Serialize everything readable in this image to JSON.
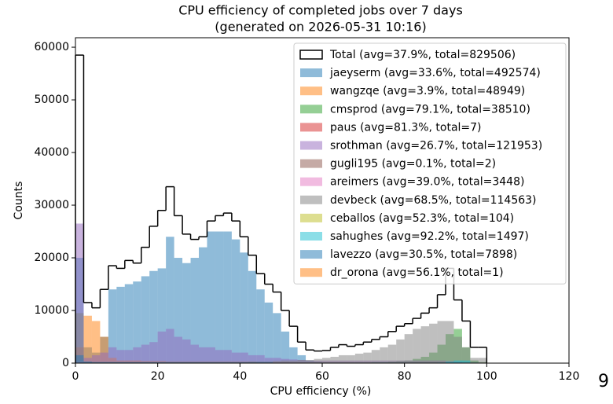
{
  "chart_data": {
    "type": "histogram",
    "title": "CPU efficiency of completed jobs over 7 days",
    "subtitle": "(generated on 2026-05-31 10:16)",
    "x_label": "CPU efficiency (%)",
    "y_label": "Counts",
    "corner_text": "9",
    "xlim": [
      0,
      120
    ],
    "xticks": [
      0,
      20,
      40,
      60,
      80,
      100,
      120
    ],
    "ylim": [
      0,
      61800
    ],
    "yticks": [
      0,
      10000,
      20000,
      30000,
      40000,
      50000,
      60000
    ],
    "legend": "upper right",
    "alpha": 0.5,
    "bins": [
      0,
      2,
      4,
      6,
      8,
      10,
      12,
      14,
      16,
      18,
      20,
      22,
      24,
      26,
      28,
      30,
      32,
      34,
      36,
      38,
      40,
      42,
      44,
      46,
      48,
      50,
      52,
      54,
      56,
      58,
      60,
      62,
      64,
      66,
      68,
      70,
      72,
      74,
      76,
      78,
      80,
      82,
      84,
      86,
      88,
      90,
      92,
      94,
      96,
      98,
      100
    ],
    "total": {
      "name": "Total (avg=37.9%, total=829506)",
      "color": "#000000",
      "values": [
        58500,
        11500,
        10500,
        14000,
        18500,
        18000,
        19500,
        19000,
        22000,
        26000,
        29000,
        33500,
        28000,
        24500,
        23500,
        24000,
        27000,
        28000,
        28500,
        27000,
        24000,
        20500,
        17000,
        15000,
        13500,
        10000,
        7000,
        4000,
        2500,
        2300,
        2400,
        3000,
        3500,
        3200,
        3500,
        4000,
        4500,
        5000,
        6000,
        7000,
        7500,
        8500,
        9500,
        10500,
        13000,
        18000,
        12000,
        8000,
        3000,
        3000
      ]
    },
    "series": [
      {
        "name": "jaeyserm (avg=33.6%, total=492574)",
        "color": "#1f77b4",
        "values": [
          20000,
          3000,
          2000,
          5000,
          14000,
          14500,
          15000,
          15500,
          16500,
          17500,
          18000,
          24000,
          20000,
          19000,
          20000,
          22000,
          25000,
          25000,
          25000,
          23500,
          21000,
          17500,
          14000,
          11500,
          9500,
          6000,
          3000,
          1500,
          500,
          300,
          200,
          200,
          200,
          200,
          200,
          200,
          200,
          200,
          200,
          200,
          200,
          200,
          200,
          200,
          200,
          200,
          200,
          200,
          200,
          0
        ]
      },
      {
        "name": "wangzqe (avg=3.9%, total=48949)",
        "color": "#ff7f0e",
        "values": [
          3000,
          9000,
          8000,
          5000,
          1000,
          500,
          500,
          500,
          400,
          400,
          400,
          300,
          300,
          300,
          300,
          300,
          300,
          300,
          300,
          300,
          300,
          300,
          200,
          200,
          200,
          200,
          200,
          200,
          200,
          200,
          200,
          200,
          200,
          200,
          200,
          200,
          200,
          200,
          200,
          200,
          200,
          200,
          200,
          200,
          200,
          200,
          200,
          200,
          100,
          100
        ]
      },
      {
        "name": "cmsprod (avg=79.1%, total=38510)",
        "color": "#2ca02c",
        "values": [
          0,
          0,
          0,
          0,
          0,
          0,
          0,
          0,
          0,
          0,
          0,
          0,
          0,
          0,
          0,
          0,
          0,
          0,
          0,
          0,
          0,
          0,
          0,
          0,
          0,
          0,
          0,
          0,
          0,
          0,
          0,
          0,
          0,
          0,
          100,
          100,
          200,
          200,
          300,
          400,
          500,
          800,
          1200,
          2000,
          3500,
          5500,
          6500,
          3000,
          500,
          200
        ]
      },
      {
        "name": "paus (avg=81.3%, total=7)",
        "color": "#d62728",
        "values": [
          0,
          0,
          0,
          0,
          0,
          0,
          0,
          0,
          0,
          0,
          0,
          0,
          0,
          0,
          0,
          0,
          0,
          0,
          0,
          0,
          0,
          0,
          0,
          0,
          0,
          0,
          0,
          0,
          0,
          0,
          0,
          0,
          0,
          0,
          0,
          0,
          0,
          0,
          0,
          0,
          7,
          0,
          0,
          0,
          0,
          0,
          0,
          0,
          0,
          0
        ]
      },
      {
        "name": "srothman (avg=26.7%, total=121953)",
        "color": "#9467bd",
        "values": [
          26500,
          1000,
          1500,
          2000,
          3000,
          2500,
          2500,
          3000,
          3500,
          4000,
          6000,
          6500,
          5000,
          4500,
          3500,
          3000,
          3000,
          2500,
          2500,
          2000,
          2000,
          1500,
          1500,
          1000,
          1000,
          800,
          700,
          600,
          500,
          500,
          500,
          500,
          500,
          500,
          500,
          500,
          500,
          500,
          500,
          500,
          500,
          500,
          500,
          500,
          500,
          400,
          300,
          200,
          100,
          100
        ]
      },
      {
        "name": "gugli195 (avg=0.1%, total=2)",
        "color": "#8c564b",
        "values": [
          2,
          0,
          0,
          0,
          0,
          0,
          0,
          0,
          0,
          0,
          0,
          0,
          0,
          0,
          0,
          0,
          0,
          0,
          0,
          0,
          0,
          0,
          0,
          0,
          0,
          0,
          0,
          0,
          0,
          0,
          0,
          0,
          0,
          0,
          0,
          0,
          0,
          0,
          0,
          0,
          0,
          0,
          0,
          0,
          0,
          0,
          0,
          0,
          0,
          0
        ]
      },
      {
        "name": "areimers (avg=39.0%, total=3448)",
        "color": "#e377c2",
        "values": [
          300,
          50,
          50,
          50,
          50,
          50,
          50,
          50,
          50,
          50,
          50,
          50,
          50,
          50,
          50,
          50,
          50,
          50,
          50,
          50,
          50,
          50,
          50,
          50,
          50,
          50,
          50,
          50,
          50,
          50,
          50,
          50,
          50,
          50,
          50,
          50,
          50,
          50,
          50,
          50,
          100,
          100,
          100,
          100,
          100,
          100,
          100,
          100,
          50,
          50
        ]
      },
      {
        "name": "devbeck (avg=68.5%, total=114563)",
        "color": "#7f7f7f",
        "values": [
          9500,
          300,
          200,
          200,
          200,
          200,
          200,
          200,
          200,
          200,
          200,
          200,
          200,
          200,
          200,
          200,
          200,
          200,
          200,
          200,
          200,
          300,
          300,
          300,
          400,
          500,
          500,
          600,
          600,
          800,
          1000,
          1200,
          1500,
          1500,
          1800,
          2000,
          2500,
          3000,
          3500,
          4500,
          5500,
          6500,
          7000,
          7500,
          8000,
          8000,
          5000,
          3000,
          1000,
          1000
        ]
      },
      {
        "name": "ceballos (avg=52.3%, total=104)",
        "color": "#bcbd22",
        "values": [
          0,
          0,
          0,
          0,
          0,
          0,
          0,
          0,
          0,
          0,
          0,
          0,
          0,
          0,
          0,
          0,
          0,
          0,
          0,
          0,
          0,
          0,
          0,
          0,
          20,
          30,
          30,
          24,
          0,
          0,
          0,
          0,
          0,
          0,
          0,
          0,
          0,
          0,
          0,
          0,
          0,
          0,
          0,
          0,
          0,
          0,
          0,
          0,
          0,
          0
        ]
      },
      {
        "name": "sahughes (avg=92.2%, total=1497)",
        "color": "#17becf",
        "values": [
          0,
          0,
          0,
          0,
          0,
          0,
          0,
          0,
          0,
          0,
          0,
          0,
          0,
          0,
          0,
          0,
          0,
          0,
          0,
          0,
          0,
          0,
          0,
          0,
          0,
          0,
          0,
          0,
          0,
          0,
          0,
          0,
          0,
          0,
          0,
          0,
          0,
          0,
          0,
          0,
          0,
          0,
          0,
          0,
          100,
          300,
          500,
          500,
          97,
          0
        ]
      },
      {
        "name": "lavezzo (avg=30.5%, total=7898)",
        "color": "#1f77b4",
        "values": [
          1500,
          300,
          200,
          200,
          200,
          200,
          200,
          200,
          200,
          200,
          200,
          200,
          200,
          200,
          200,
          200,
          200,
          200,
          200,
          200,
          200,
          200,
          200,
          200,
          100,
          100,
          100,
          100,
          100,
          100,
          100,
          100,
          100,
          100,
          100,
          100,
          100,
          100,
          100,
          100,
          100,
          100,
          100,
          100,
          100,
          100,
          98,
          0,
          0,
          0
        ]
      },
      {
        "name": "dr_orona (avg=56.1%, total=1)",
        "color": "#ff7f0e",
        "values": [
          0,
          0,
          0,
          0,
          0,
          0,
          0,
          0,
          0,
          0,
          0,
          0,
          0,
          0,
          0,
          0,
          0,
          0,
          0,
          0,
          0,
          0,
          0,
          0,
          0,
          0,
          0,
          0,
          1,
          0,
          0,
          0,
          0,
          0,
          0,
          0,
          0,
          0,
          0,
          0,
          0,
          0,
          0,
          0,
          0,
          0,
          0,
          0,
          0,
          0
        ]
      }
    ]
  }
}
